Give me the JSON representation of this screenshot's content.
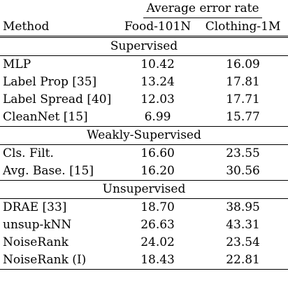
{
  "table": {
    "header_group": "Average error rate",
    "columns": [
      "Method",
      "Food-101N",
      "Clothing-1M"
    ],
    "groups": [
      {
        "name": "Supervised",
        "rows": [
          {
            "method": "MLP",
            "food": "10.42",
            "clothing": "16.09",
            "bold": false
          },
          {
            "method": "Label Prop [35]",
            "food": "13.24",
            "clothing": "17.81",
            "bold": false
          },
          {
            "method": "Label Spread [40]",
            "food": "12.03",
            "clothing": "17.71",
            "bold": false
          },
          {
            "method": "CleanNet [15]",
            "food": "6.99",
            "clothing": "15.77",
            "bold": false
          }
        ]
      },
      {
        "name": "Weakly-Supervised",
        "rows": [
          {
            "method": "Cls. Filt.",
            "food": "16.60",
            "clothing": "23.55",
            "bold": false
          },
          {
            "method": "Avg. Base. [15]",
            "food": "16.20",
            "clothing": "30.56",
            "bold": false
          }
        ]
      },
      {
        "name": "Unsupervised",
        "rows": [
          {
            "method": "DRAE [33]",
            "food": "18.70",
            "clothing": "38.95",
            "bold": false
          },
          {
            "method": "unsup-kNN",
            "food": "26.63",
            "clothing": "43.31",
            "bold": false
          },
          {
            "method": "NoiseRank",
            "food": "24.02",
            "clothing": "23.54",
            "bold": false
          },
          {
            "method": "NoiseRank (I)",
            "food": "18.43",
            "clothing": "22.81",
            "bold": true
          }
        ]
      }
    ]
  }
}
